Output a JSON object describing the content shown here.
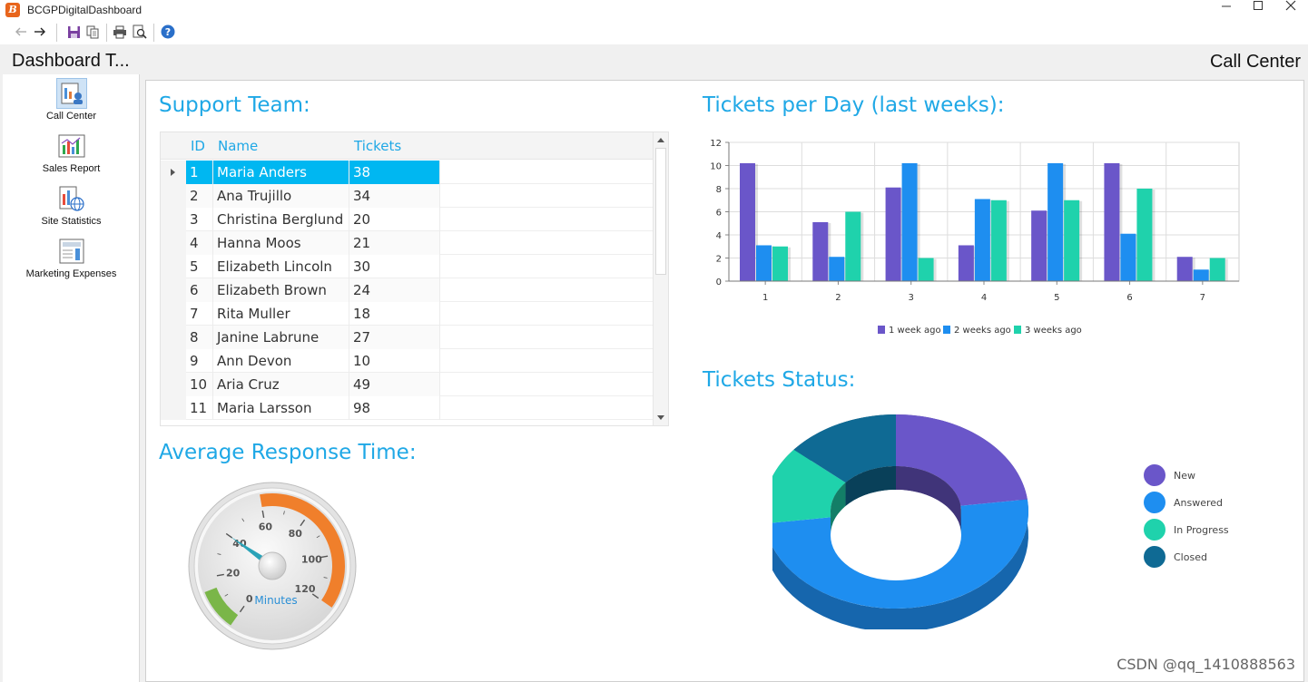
{
  "window": {
    "title": "BCGPDigitalDashboard",
    "icon_letter": "B",
    "minimize_icon": "minimize-icon",
    "maximize_icon": "maximize-icon",
    "close_icon": "close-icon"
  },
  "toolbar": {
    "icons": [
      "back-icon",
      "forward-icon",
      "save-icon",
      "copy-icon",
      "print-icon",
      "print-preview-icon",
      "help-icon"
    ]
  },
  "sidebar": {
    "title": "Dashboard T...",
    "items": [
      {
        "label": "Call Center",
        "icon": "call-center-icon",
        "selected": true
      },
      {
        "label": "Sales Report",
        "icon": "sales-report-icon",
        "selected": false
      },
      {
        "label": "Site Statistics",
        "icon": "site-statistics-icon",
        "selected": false
      },
      {
        "label": "Marketing Expenses",
        "icon": "marketing-expenses-icon",
        "selected": false
      }
    ]
  },
  "panel": {
    "title": "Call Center"
  },
  "support_team": {
    "title": "Support Team:",
    "columns": [
      "ID",
      "Name",
      "Tickets"
    ],
    "rows": [
      {
        "id": "1",
        "name": "Maria Anders",
        "tickets": "38"
      },
      {
        "id": "2",
        "name": "Ana Trujillo",
        "tickets": "34"
      },
      {
        "id": "3",
        "name": "Christina Berglund",
        "tickets": "20"
      },
      {
        "id": "4",
        "name": "Hanna Moos",
        "tickets": "21"
      },
      {
        "id": "5",
        "name": "Elizabeth Lincoln",
        "tickets": "30"
      },
      {
        "id": "6",
        "name": "Elizabeth Brown",
        "tickets": "24"
      },
      {
        "id": "7",
        "name": "Rita Muller",
        "tickets": "18"
      },
      {
        "id": "8",
        "name": "Janine Labrune",
        "tickets": "27"
      },
      {
        "id": "9",
        "name": "Ann Devon",
        "tickets": "10"
      },
      {
        "id": "10",
        "name": "Aria Cruz",
        "tickets": "49"
      },
      {
        "id": "11",
        "name": "Maria Larsson",
        "tickets": "98"
      }
    ],
    "selected_row": 0
  },
  "response_time": {
    "title": "Average Response Time:",
    "unit_label": "Minutes",
    "value": 40,
    "min": 0,
    "max": 120,
    "tick_labels": [
      "0",
      "20",
      "40",
      "60",
      "80",
      "100",
      "120"
    ],
    "green_range": [
      0,
      15
    ],
    "orange_range": [
      60,
      120
    ],
    "colors": {
      "green": "#7ab648",
      "orange": "#f07f2b",
      "needle": "#2aa3b8"
    }
  },
  "chart_data": [
    {
      "type": "bar",
      "title": "Tickets per Day (last weeks):",
      "categories": [
        "1",
        "2",
        "3",
        "4",
        "5",
        "6",
        "7"
      ],
      "series": [
        {
          "name": "1 week ago",
          "values": [
            10.2,
            5.1,
            8.1,
            3.1,
            6.1,
            10.2,
            2.1
          ],
          "color": "#6a56c9"
        },
        {
          "name": "2 weeks ago",
          "values": [
            3.1,
            2.1,
            10.2,
            7.1,
            10.2,
            4.1,
            1.0
          ],
          "color": "#1e8ef0"
        },
        {
          "name": "3 weeks ago",
          "values": [
            3.0,
            6.0,
            2.0,
            7.0,
            7.0,
            8.0,
            2.0
          ],
          "color": "#1fd2ac"
        }
      ],
      "ylim": [
        0,
        12
      ],
      "yticks": [
        "0",
        "2",
        "4",
        "6",
        "8",
        "10",
        "12"
      ],
      "grid": true,
      "legend": "bottom"
    },
    {
      "type": "pie",
      "title": "Tickets Status:",
      "donut": true,
      "slices": [
        {
          "label": "New",
          "value": 23,
          "color": "#6a56c9"
        },
        {
          "label": "Answered",
          "value": 50,
          "color": "#1e8ef0"
        },
        {
          "label": "In Progress",
          "value": 13,
          "color": "#1fd2ac"
        },
        {
          "label": "Closed",
          "value": 14,
          "color": "#0f6a94"
        }
      ],
      "legend": "right"
    }
  ],
  "watermark": "CSDN @qq_1410888563"
}
